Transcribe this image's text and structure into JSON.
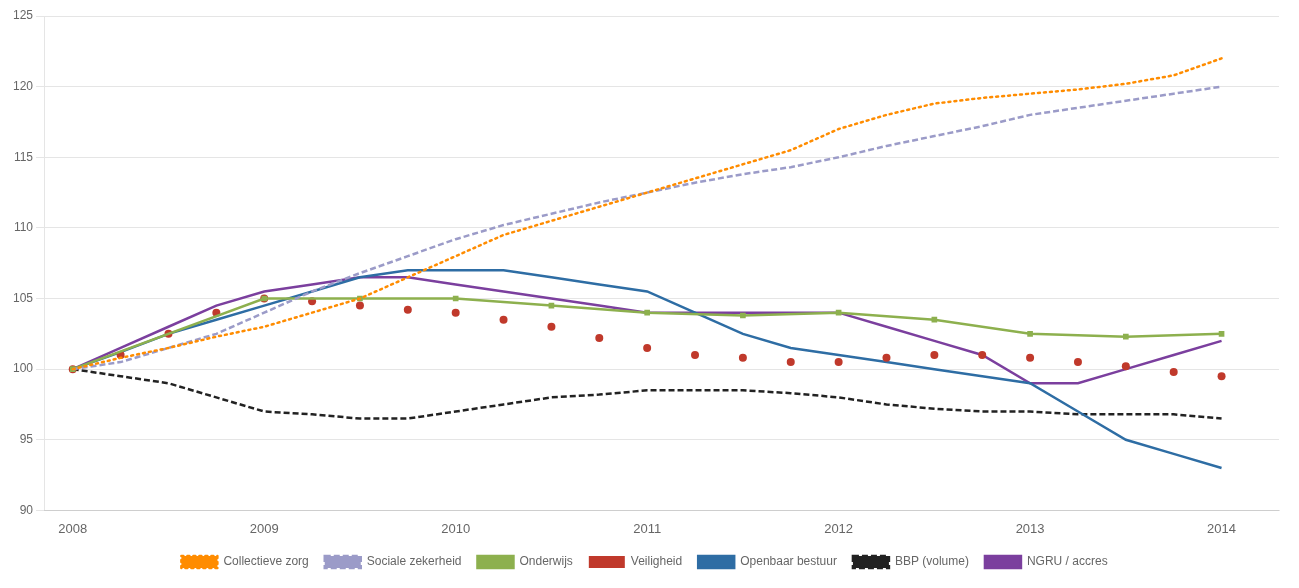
{
  "chart_data": {
    "type": "line",
    "xlim": [
      2007.85,
      2014.3
    ],
    "xticks": [
      2008,
      2009,
      2010,
      2011,
      2012,
      2013,
      2014
    ],
    "ylim": [
      90,
      125
    ],
    "yticks": [
      90,
      95,
      100,
      105,
      110,
      115,
      120,
      125
    ],
    "grid": "y",
    "legend": "bottom",
    "series": [
      {
        "name": "Collectieve zorg",
        "color": "#FF8C00",
        "line_style": "dotted",
        "marker": "none",
        "x": [
          2008.0,
          2008.25,
          2008.5,
          2008.75,
          2009.0,
          2009.25,
          2009.5,
          2009.75,
          2010.0,
          2010.25,
          2010.5,
          2010.75,
          2011.0,
          2011.25,
          2011.5,
          2011.75,
          2012.0,
          2012.25,
          2012.5,
          2012.75,
          2013.0,
          2013.25,
          2013.5,
          2013.75,
          2014.0
        ],
        "values": [
          100,
          100.8,
          101.5,
          102.3,
          103.0,
          104.0,
          105.0,
          106.5,
          108.0,
          109.5,
          110.5,
          111.5,
          112.5,
          113.5,
          114.5,
          115.5,
          117.0,
          118.0,
          118.8,
          119.2,
          119.5,
          119.8,
          120.2,
          120.8,
          122.0
        ]
      },
      {
        "name": "Sociale zekerheid",
        "color": "#9B9BC8",
        "line_style": "dashed",
        "marker": "none",
        "x": [
          2008.0,
          2008.25,
          2008.5,
          2008.75,
          2009.0,
          2009.25,
          2009.5,
          2009.75,
          2010.0,
          2010.25,
          2010.5,
          2010.75,
          2011.0,
          2011.25,
          2011.5,
          2011.75,
          2012.0,
          2012.25,
          2012.5,
          2012.75,
          2013.0,
          2013.25,
          2013.5,
          2013.75,
          2014.0
        ],
        "values": [
          100,
          100.5,
          101.5,
          102.5,
          104.0,
          105.5,
          106.8,
          108.0,
          109.2,
          110.2,
          111.0,
          111.8,
          112.5,
          113.2,
          113.8,
          114.3,
          115.0,
          115.8,
          116.5,
          117.2,
          118.0,
          118.5,
          119.0,
          119.5,
          120.0
        ]
      },
      {
        "name": "Onderwijs",
        "color": "#8DB04E",
        "line_style": "solid",
        "marker": "square",
        "x": [
          2008.0,
          2009.0,
          2009.5,
          2010.0,
          2010.5,
          2011.0,
          2011.5,
          2012.0,
          2012.5,
          2013.0,
          2013.5,
          2014.0
        ],
        "values": [
          100,
          105.0,
          105.0,
          105.0,
          104.5,
          104.0,
          103.8,
          104.0,
          103.5,
          102.5,
          102.3,
          102.5
        ]
      },
      {
        "name": "Veiligheid",
        "color": "#C0392B",
        "line_style": "none",
        "marker": "circle",
        "x": [
          2008.0,
          2008.25,
          2008.5,
          2008.75,
          2009.0,
          2009.25,
          2009.5,
          2009.75,
          2010.0,
          2010.25,
          2010.5,
          2010.75,
          2011.0,
          2011.25,
          2011.5,
          2011.75,
          2012.0,
          2012.25,
          2012.5,
          2012.75,
          2013.0,
          2013.25,
          2013.5,
          2013.75,
          2014.0
        ],
        "values": [
          100,
          101.0,
          102.5,
          104.0,
          105.0,
          104.8,
          104.5,
          104.2,
          104.0,
          103.5,
          103.0,
          102.2,
          101.5,
          101.0,
          100.8,
          100.5,
          100.5,
          100.8,
          101.0,
          101.0,
          100.8,
          100.5,
          100.2,
          99.8,
          99.5
        ]
      },
      {
        "name": "Openbaar bestuur",
        "color": "#2E6DA4",
        "line_style": "solid",
        "marker": "none",
        "x": [
          2008.0,
          2008.25,
          2008.5,
          2008.75,
          2009.0,
          2009.25,
          2009.5,
          2009.75,
          2010.0,
          2010.25,
          2010.5,
          2010.75,
          2011.0,
          2011.25,
          2011.5,
          2011.75,
          2012.0,
          2012.25,
          2012.5,
          2012.75,
          2013.0,
          2013.25,
          2013.5,
          2013.75,
          2014.0
        ],
        "values": [
          100,
          101.2,
          102.5,
          103.5,
          104.5,
          105.5,
          106.5,
          107.0,
          107.0,
          107.0,
          106.5,
          106.0,
          105.5,
          104.0,
          102.5,
          101.5,
          101.0,
          100.5,
          100.0,
          99.5,
          99.0,
          97.0,
          95.0,
          94.0,
          93.0
        ]
      },
      {
        "name": "BBP (volume)",
        "color": "#222222",
        "line_style": "dashed",
        "marker": "none",
        "x": [
          2008.0,
          2008.25,
          2008.5,
          2008.75,
          2009.0,
          2009.25,
          2009.5,
          2009.75,
          2010.0,
          2010.25,
          2010.5,
          2010.75,
          2011.0,
          2011.25,
          2011.5,
          2011.75,
          2012.0,
          2012.25,
          2012.5,
          2012.75,
          2013.0,
          2013.25,
          2013.5,
          2013.75,
          2014.0
        ],
        "values": [
          100,
          99.5,
          99.0,
          98.0,
          97.0,
          96.8,
          96.5,
          96.5,
          97.0,
          97.5,
          98.0,
          98.2,
          98.5,
          98.5,
          98.5,
          98.3,
          98.0,
          97.5,
          97.2,
          97.0,
          97.0,
          96.8,
          96.8,
          96.8,
          96.5
        ]
      },
      {
        "name": "NGRU / accres",
        "color": "#7B3F9E",
        "line_style": "solid",
        "marker": "none",
        "x": [
          2008.0,
          2008.25,
          2008.5,
          2008.75,
          2009.0,
          2009.25,
          2009.5,
          2009.75,
          2010.0,
          2010.25,
          2010.5,
          2010.75,
          2011.0,
          2011.25,
          2011.5,
          2011.75,
          2012.0,
          2012.25,
          2012.5,
          2012.75,
          2013.0,
          2013.25,
          2013.5,
          2013.75,
          2014.0
        ],
        "values": [
          100,
          101.5,
          103.0,
          104.5,
          105.5,
          106.0,
          106.5,
          106.5,
          106.0,
          105.5,
          105.0,
          104.5,
          104.0,
          104.0,
          104.0,
          104.0,
          104.0,
          103.0,
          102.0,
          101.0,
          99.0,
          99.0,
          100.0,
          101.0,
          102.0
        ]
      }
    ]
  }
}
